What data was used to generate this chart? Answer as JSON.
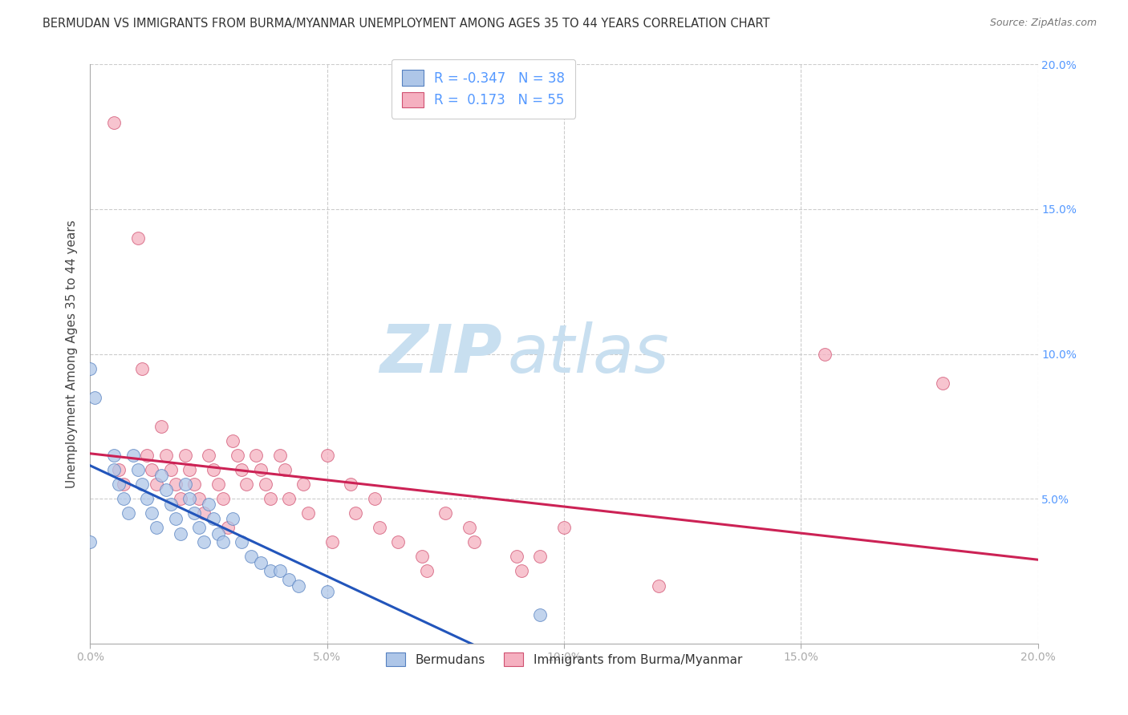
{
  "title": "BERMUDAN VS IMMIGRANTS FROM BURMA/MYANMAR UNEMPLOYMENT AMONG AGES 35 TO 44 YEARS CORRELATION CHART",
  "source": "Source: ZipAtlas.com",
  "ylabel": "Unemployment Among Ages 35 to 44 years",
  "x_min": 0.0,
  "x_max": 0.2,
  "y_min": 0.0,
  "y_max": 0.2,
  "bermudans_fill": "#aec6e8",
  "bermudans_edge": "#5580c0",
  "burma_fill": "#f5b0c0",
  "burma_edge": "#d05070",
  "R_bermudans": -0.347,
  "N_bermudans": 38,
  "R_burma": 0.173,
  "N_burma": 55,
  "trend_bermudans_color": "#2255bb",
  "trend_burma_color": "#cc2255",
  "legend_label_1": "Bermudans",
  "legend_label_2": "Immigrants from Burma/Myanmar",
  "watermark_zip": "ZIP",
  "watermark_atlas": "atlas",
  "watermark_color_zip": "#c8dff0",
  "watermark_color_atlas": "#c8dff0",
  "background_color": "#ffffff",
  "grid_color": "#cccccc",
  "right_axis_color": "#5599ff",
  "bermudans_x": [
    0.0,
    0.0,
    0.001,
    0.005,
    0.005,
    0.006,
    0.007,
    0.008,
    0.009,
    0.01,
    0.011,
    0.012,
    0.013,
    0.014,
    0.015,
    0.016,
    0.017,
    0.018,
    0.019,
    0.02,
    0.021,
    0.022,
    0.023,
    0.024,
    0.025,
    0.026,
    0.027,
    0.028,
    0.03,
    0.032,
    0.034,
    0.036,
    0.038,
    0.04,
    0.042,
    0.044,
    0.05,
    0.095
  ],
  "bermudans_y": [
    0.095,
    0.035,
    0.085,
    0.065,
    0.06,
    0.055,
    0.05,
    0.045,
    0.065,
    0.06,
    0.055,
    0.05,
    0.045,
    0.04,
    0.058,
    0.053,
    0.048,
    0.043,
    0.038,
    0.055,
    0.05,
    0.045,
    0.04,
    0.035,
    0.048,
    0.043,
    0.038,
    0.035,
    0.043,
    0.035,
    0.03,
    0.028,
    0.025,
    0.025,
    0.022,
    0.02,
    0.018,
    0.01
  ],
  "burma_x": [
    0.005,
    0.006,
    0.007,
    0.01,
    0.011,
    0.012,
    0.013,
    0.014,
    0.015,
    0.016,
    0.017,
    0.018,
    0.019,
    0.02,
    0.021,
    0.022,
    0.023,
    0.024,
    0.025,
    0.026,
    0.027,
    0.028,
    0.029,
    0.03,
    0.031,
    0.032,
    0.033,
    0.035,
    0.036,
    0.037,
    0.038,
    0.04,
    0.041,
    0.042,
    0.045,
    0.046,
    0.05,
    0.051,
    0.055,
    0.056,
    0.06,
    0.061,
    0.065,
    0.07,
    0.071,
    0.075,
    0.08,
    0.081,
    0.09,
    0.091,
    0.095,
    0.1,
    0.12,
    0.155,
    0.18
  ],
  "burma_y": [
    0.18,
    0.06,
    0.055,
    0.14,
    0.095,
    0.065,
    0.06,
    0.055,
    0.075,
    0.065,
    0.06,
    0.055,
    0.05,
    0.065,
    0.06,
    0.055,
    0.05,
    0.045,
    0.065,
    0.06,
    0.055,
    0.05,
    0.04,
    0.07,
    0.065,
    0.06,
    0.055,
    0.065,
    0.06,
    0.055,
    0.05,
    0.065,
    0.06,
    0.05,
    0.055,
    0.045,
    0.065,
    0.035,
    0.055,
    0.045,
    0.05,
    0.04,
    0.035,
    0.03,
    0.025,
    0.045,
    0.04,
    0.035,
    0.03,
    0.025,
    0.03,
    0.04,
    0.02,
    0.1,
    0.09
  ]
}
